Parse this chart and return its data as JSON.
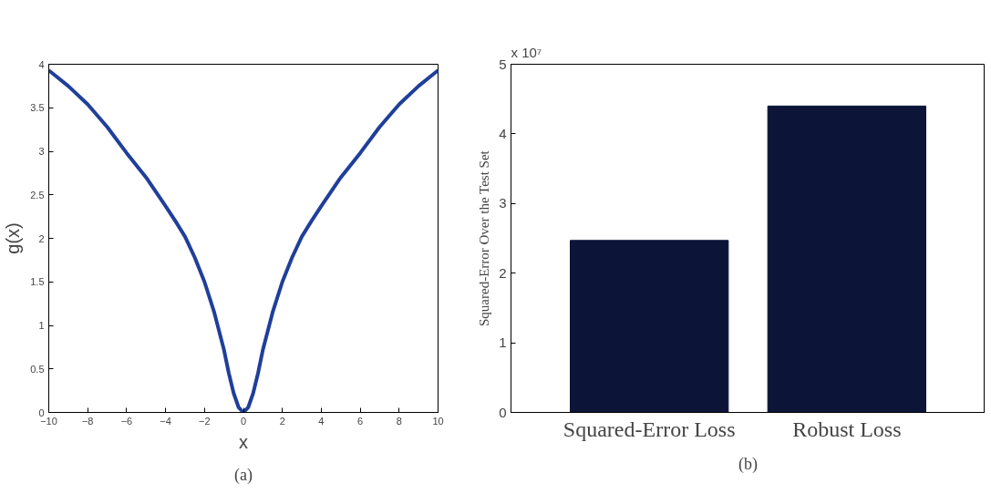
{
  "chart_data": [
    {
      "type": "line",
      "xlabel": "x",
      "ylabel": "g(x)",
      "annotations": [
        "(a)"
      ],
      "x": [
        -10,
        -9,
        -8,
        -7,
        -6,
        -5,
        -4,
        -3.5,
        -3,
        -2.5,
        -2,
        -1.5,
        -1,
        -0.75,
        -0.5,
        -0.25,
        0,
        0.25,
        0.5,
        0.75,
        1,
        1.5,
        2,
        2.5,
        3,
        3.5,
        4,
        5,
        6,
        7,
        8,
        9,
        10
      ],
      "series": [
        {
          "color": "#1f3f9a",
          "values": [
            3.93,
            3.75,
            3.54,
            3.28,
            2.98,
            2.7,
            2.37,
            2.2,
            2.02,
            1.78,
            1.5,
            1.15,
            0.72,
            0.45,
            0.22,
            0.06,
            0,
            0.06,
            0.22,
            0.45,
            0.72,
            1.15,
            1.5,
            1.78,
            2.02,
            2.2,
            2.37,
            2.7,
            2.98,
            3.28,
            3.54,
            3.75,
            3.93
          ]
        }
      ],
      "xlim": [
        -10,
        10
      ],
      "xticks": [
        -10,
        -8,
        -6,
        -4,
        -2,
        0,
        2,
        4,
        6,
        8,
        10
      ],
      "ylim": [
        0,
        4
      ],
      "yticks": [
        0,
        0.5,
        1,
        1.5,
        2,
        2.5,
        3,
        3.5,
        4
      ],
      "grid": false
    },
    {
      "type": "bar",
      "ylabel": "Squared-Error Over the Test Set",
      "annotations": [
        "x 10⁷",
        "(b)"
      ],
      "categories": [
        "Squared-Error Loss",
        "Robust Loss"
      ],
      "series": [
        {
          "color": "#0c1538",
          "values": [
            2.47,
            4.4
          ]
        }
      ],
      "ylim": [
        0,
        5
      ],
      "yticks": [
        0,
        1,
        2,
        3,
        4,
        5
      ],
      "grid": false
    }
  ]
}
